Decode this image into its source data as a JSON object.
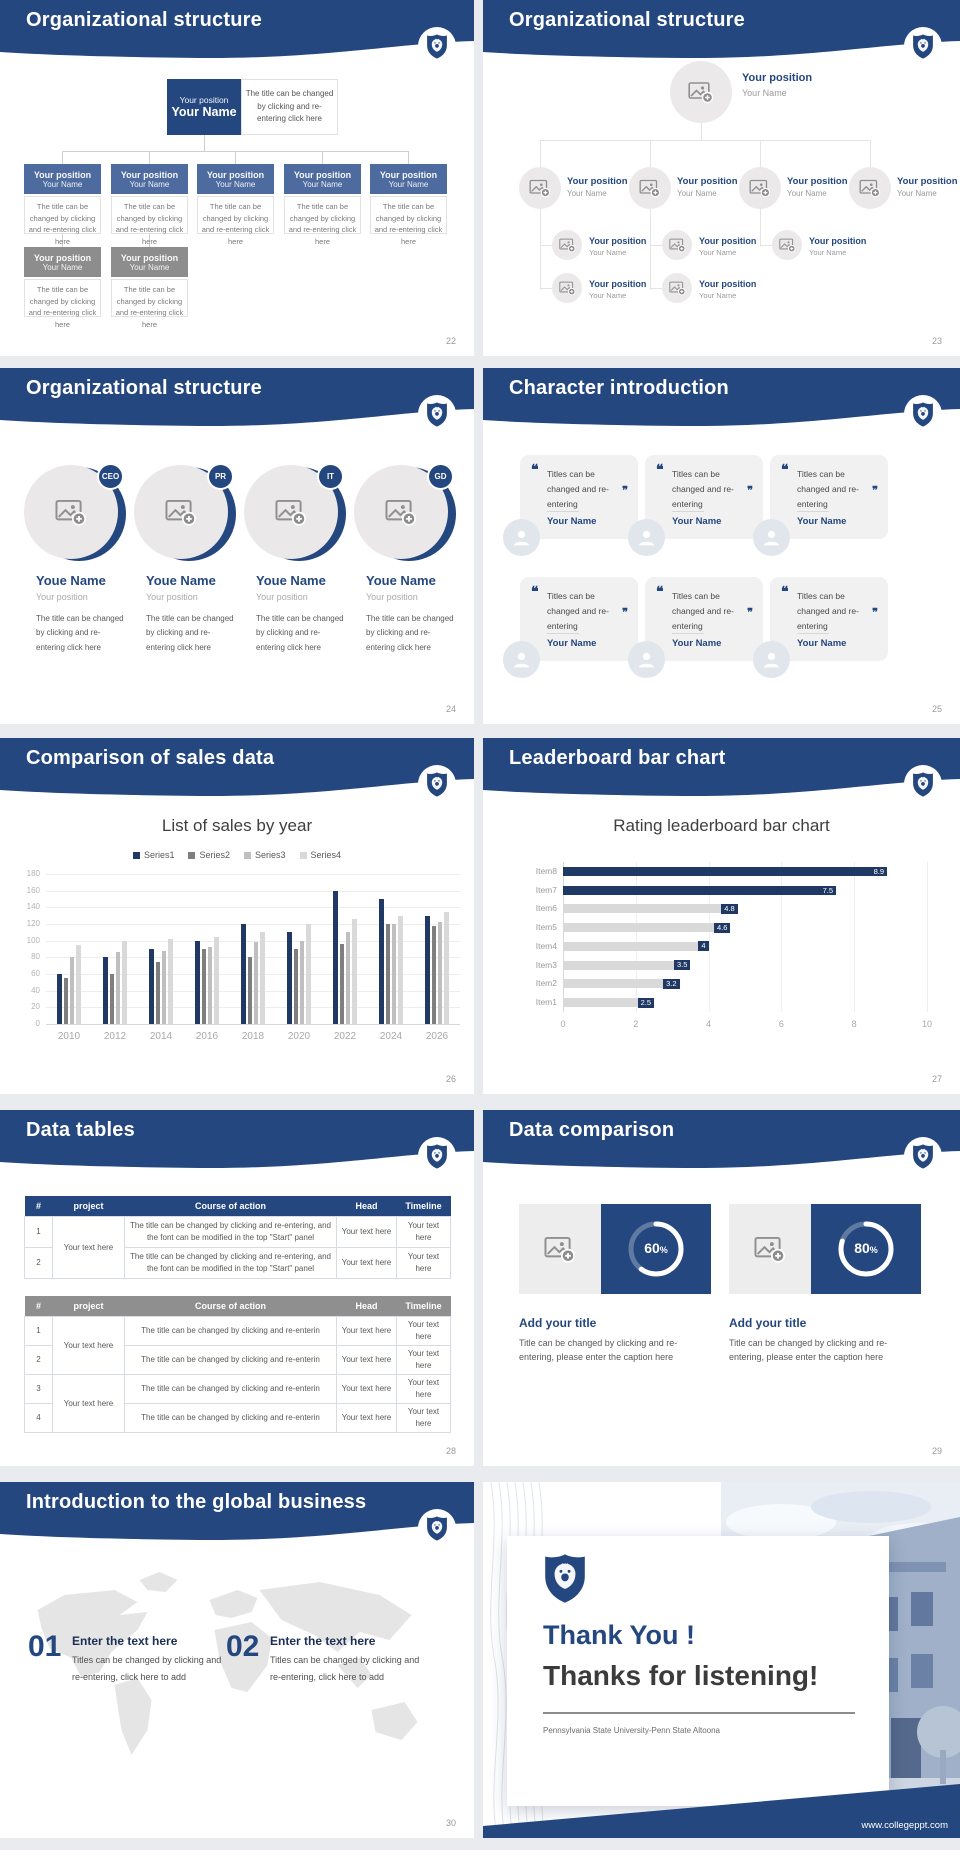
{
  "common": {
    "position": "Your position",
    "name": "Your Name",
    "youe_name": "Youe Name",
    "desc_click": "The title can be changed by clicking and re-entering click here",
    "quote_open": "❝",
    "quote_close": "❞",
    "quote_text": "Titles can be changed and re-entering",
    "your_text": "Your text here"
  },
  "slides": {
    "s1": {
      "title": "Organizational structure",
      "page": "22"
    },
    "s2": {
      "title": "Organizational structure",
      "page": "23"
    },
    "s3": {
      "title": "Organizational structure",
      "page": "24",
      "badges": [
        "CEO",
        "PR",
        "IT",
        "GD"
      ],
      "desc": "The title can be changed by clicking and re-entering click here"
    },
    "s4": {
      "title": "Character introduction",
      "page": "25"
    },
    "s5": {
      "title": "Comparison of sales data",
      "page": "26"
    },
    "s6": {
      "title": "Leaderboard bar chart",
      "page": "27"
    },
    "s7": {
      "title": "Data tables",
      "page": "28",
      "table1": {
        "headers": [
          "#",
          "project",
          "Course of action",
          "Head",
          "Timeline"
        ],
        "project": "Your text here",
        "rows": [
          {
            "num": "1",
            "action": "The title can be changed by clicking and re-entering, and the font can be modified in the top \"Start\" panel",
            "head": "Your text here",
            "timeline": "Your text here"
          },
          {
            "num": "2",
            "action": "The title can be changed by clicking and re-entering, and the font can be modified in the top \"Start\" panel",
            "head": "Your text here",
            "timeline": "Your text here"
          }
        ]
      },
      "table2": {
        "headers": [
          "#",
          "project",
          "Course of action",
          "Head",
          "Timeline"
        ],
        "projects": [
          "Your text here",
          "Your text here"
        ],
        "rows": [
          {
            "num": "1",
            "action": "The title can be changed by clicking and re-enterin",
            "head": "Your text here",
            "timeline": "Your text here"
          },
          {
            "num": "2",
            "action": "The title can be changed by clicking and re-enterin",
            "head": "Your text here",
            "timeline": "Your text here"
          },
          {
            "num": "3",
            "action": "The title can be changed by clicking and re-enterin",
            "head": "Your text here",
            "timeline": "Your text here"
          },
          {
            "num": "4",
            "action": "The title can be changed by clicking and re-enterin",
            "head": "Your text here",
            "timeline": "Your text here"
          }
        ]
      }
    },
    "s8": {
      "title": "Data comparison",
      "page": "29",
      "item_title": "Add your title",
      "item_desc": "Title can be changed by clicking and re-entering, please enter the caption here",
      "percents": [
        "60",
        "80"
      ],
      "percent_sign": "%"
    },
    "s9": {
      "title": "Introduction to the global business",
      "page": "30",
      "items": [
        {
          "num": "01",
          "title": "Enter the text here",
          "desc": "Titles can be changed by clicking and re-entering, click here to add"
        },
        {
          "num": "02",
          "title": "Enter the text here",
          "desc": "Titles can be changed by clicking and re-entering, click here to add"
        }
      ]
    },
    "s10": {
      "title_line1": "Thank You !",
      "title_line2": "Thanks for listening!",
      "subtitle": "Pennsylvania State University-Penn State Altoona",
      "site": "www.collegeppt.com"
    }
  },
  "colors": {
    "brand_navy": "#24477f",
    "chart_navy": "#1f3864",
    "box_blue": "#4d6b9e",
    "box_gray": "#8d8d8d"
  },
  "chart_data": [
    {
      "type": "bar",
      "title": "List of sales by year",
      "categories": [
        "2010",
        "2012",
        "2014",
        "2016",
        "2018",
        "2020",
        "2022",
        "2024",
        "2026"
      ],
      "series": [
        {
          "name": "Series1",
          "color": "#1f3864",
          "values": [
            60,
            80,
            90,
            100,
            120,
            110,
            160,
            150,
            130
          ]
        },
        {
          "name": "Series2",
          "color": "#7f7f7f",
          "values": [
            55,
            60,
            75,
            90,
            80,
            90,
            96,
            120,
            118
          ]
        },
        {
          "name": "Series3",
          "color": "#bfbfbf",
          "values": [
            80,
            86,
            88,
            92,
            98,
            100,
            110,
            120,
            122
          ]
        },
        {
          "name": "Series4",
          "color": "#d9d9d9",
          "values": [
            95,
            100,
            102,
            105,
            110,
            120,
            126,
            130,
            135
          ]
        }
      ],
      "xlabel": "",
      "ylabel": "",
      "ylim": [
        0,
        180
      ],
      "ytick_step": 20,
      "grid": true,
      "legend_position": "top"
    },
    {
      "type": "bar",
      "orientation": "horizontal",
      "title": "Rating leaderboard bar chart",
      "categories": [
        "Item8",
        "Item7",
        "Item6",
        "Item5",
        "Item4",
        "Item3",
        "Item2",
        "Item1"
      ],
      "values": [
        8.9,
        7.5,
        4.8,
        4.6,
        4,
        3.5,
        3.2,
        2.5
      ],
      "bar_colors": [
        "#1f3864",
        "#1f3864",
        "#d9d9d9",
        "#d9d9d9",
        "#d9d9d9",
        "#d9d9d9",
        "#d9d9d9",
        "#d9d9d9"
      ],
      "xlim": [
        0,
        10
      ],
      "xticks": [
        0,
        2,
        4,
        6,
        8,
        10
      ],
      "grid": true,
      "data_labels": true
    },
    {
      "type": "donut",
      "labels": [
        "60%",
        "80%"
      ],
      "values": [
        60,
        80
      ]
    }
  ]
}
